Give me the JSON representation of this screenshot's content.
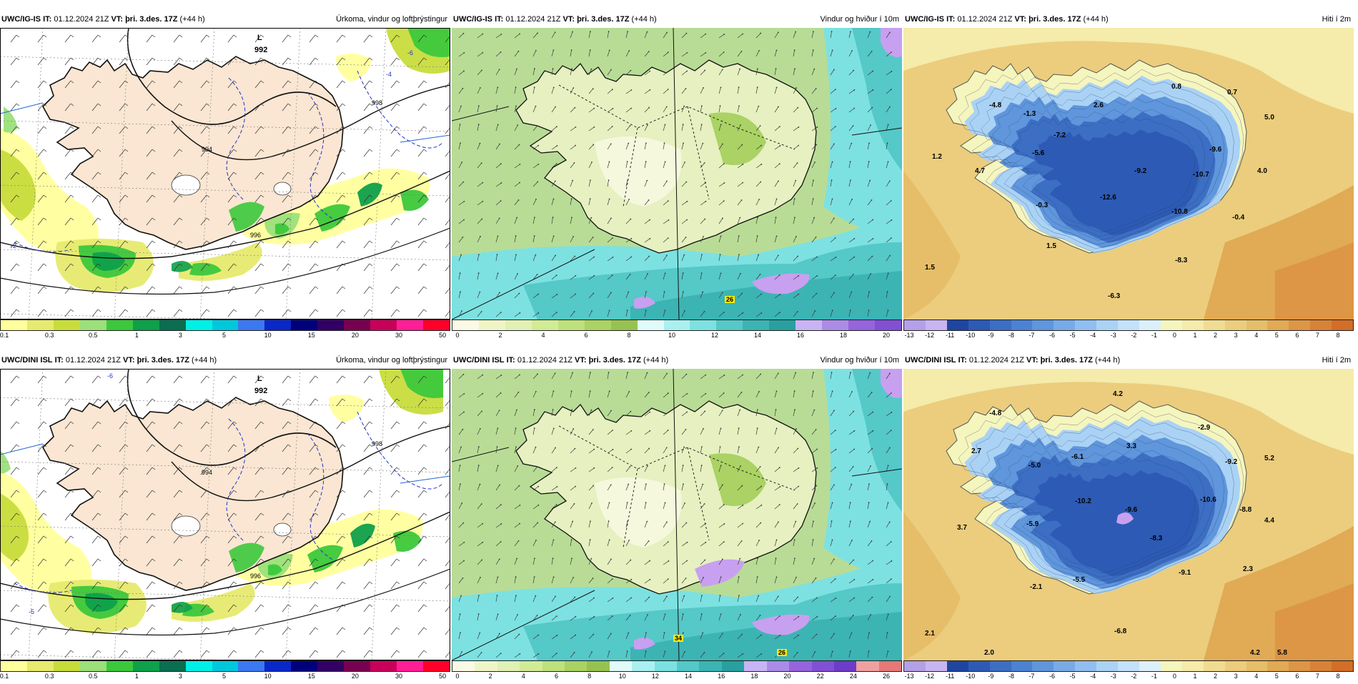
{
  "panels": [
    {
      "id": "p1",
      "header": {
        "model": "UWC/IG-IS",
        "it_label": "IT:",
        "it_value": "01.12.2024 21Z",
        "vt_label": "VT:",
        "vt_value": "þri. 3.des. 17Z",
        "lead": "(+44 h)",
        "title": "Úrkoma, vindur og loftþrýstingur"
      },
      "type": "precip",
      "colorbar": {
        "colors": [
          "#ffff9c",
          "#e6ea6e",
          "#c8dc3c",
          "#9be07a",
          "#3cc83c",
          "#0ea04a",
          "#0a6e50",
          "#00f0e6",
          "#00c8dc",
          "#3c78f0",
          "#0a28c8",
          "#00007a",
          "#320064",
          "#780050",
          "#c8005a",
          "#ff1e96",
          "#ff0028"
        ],
        "ticks": [
          "0.1",
          "0.3",
          "0.5",
          "1",
          "3",
          "5",
          "10",
          "15",
          "20",
          "30",
          "50"
        ]
      },
      "labels": [
        {
          "text": "L",
          "name": "low-pressure-label"
        },
        {
          "text": "992",
          "name": "isobar-value"
        },
        {
          "text": "994",
          "name": "isobar-value"
        },
        {
          "text": "996",
          "name": "isobar-value"
        },
        {
          "text": "998",
          "name": "isobar-value"
        },
        {
          "text": "-2",
          "name": "temp-contour-value"
        },
        {
          "text": "-6",
          "name": "temp-contour-value"
        },
        {
          "text": "-4",
          "name": "temp-contour-value"
        }
      ]
    },
    {
      "id": "p2",
      "header": {
        "model": "UWC/IG-IS",
        "it_label": "IT:",
        "it_value": "01.12.2024 21Z",
        "vt_label": "VT:",
        "vt_value": "þri. 3.des. 17Z",
        "lead": "(+44 h)",
        "title": "Vindur og hviður í 10m"
      },
      "type": "wind",
      "colorbar": {
        "colors": [
          "#fafae6",
          "#f0f5c8",
          "#e1f0b4",
          "#d2eb96",
          "#bee17d",
          "#aad264",
          "#96c350",
          "#e1fafa",
          "#aaf0f0",
          "#7de1e1",
          "#55c8c8",
          "#3cb4b4",
          "#28a0a0",
          "#c8b4f5",
          "#aa8ce6",
          "#9664dc",
          "#8250d2"
        ],
        "ticks": [
          "0",
          "2",
          "4",
          "6",
          "8",
          "10",
          "12",
          "14",
          "16",
          "18",
          "20"
        ]
      },
      "labels": [
        {
          "text": "26",
          "name": "gust-max-badge"
        }
      ]
    },
    {
      "id": "p3",
      "header": {
        "model": "UWC/IG-IS",
        "it_label": "IT:",
        "it_value": "01.12.2024 21Z",
        "vt_label": "VT:",
        "vt_value": "þri. 3.des. 17Z",
        "lead": "(+44 h)",
        "title": "Hiti í 2m"
      },
      "type": "temp",
      "colorbar": {
        "colors": [
          "#b4a0e6",
          "#c8b4f0",
          "#1e46a0",
          "#2d5ab4",
          "#3c6ec3",
          "#4b82d2",
          "#5f96dc",
          "#78aae6",
          "#91bef0",
          "#aad2f5",
          "#c3e1fa",
          "#dcf0fa",
          "#f5f5be",
          "#f5ebaa",
          "#f0dc91",
          "#ebcd7d",
          "#e6be69",
          "#e1aa55",
          "#dc9646",
          "#d78237",
          "#d26e28"
        ],
        "ticks": [
          "-13",
          "-12",
          "-11",
          "-10",
          "-9",
          "-8",
          "-7",
          "-6",
          "-5",
          "-4",
          "-3",
          "-2",
          "-1",
          "0",
          "1",
          "2",
          "3",
          "4",
          "5",
          "6",
          "7",
          "8"
        ]
      },
      "values": [
        "-4.8",
        "-1.3",
        "2.6",
        "0.8",
        "0.7",
        "-7.2",
        "5.0",
        "1.2",
        "-5.6",
        "-9.6",
        "4.7",
        "-9.2",
        "-10.7",
        "4.0",
        "-0.3",
        "-12.6",
        "-10.8",
        "-0.4",
        "1.5",
        "-8.3",
        "1.5",
        "-6.3"
      ]
    },
    {
      "id": "p4",
      "header": {
        "model": "UWC/DINI ISL",
        "it_label": "IT:",
        "it_value": "01.12.2024 21Z",
        "vt_label": "VT:",
        "vt_value": "þri. 3.des. 17Z",
        "lead": "(+44 h)",
        "title": "Úrkoma, vindur og loftþrýstingur"
      },
      "type": "precip",
      "colorbar": {
        "colors": [
          "#ffff9c",
          "#e6ea6e",
          "#c8dc3c",
          "#9be07a",
          "#3cc83c",
          "#0ea04a",
          "#0a6e50",
          "#00f0e6",
          "#00c8dc",
          "#3c78f0",
          "#0a28c8",
          "#00007a",
          "#320064",
          "#780050",
          "#c8005a",
          "#ff1e96",
          "#ff0028"
        ],
        "ticks": [
          "0.1",
          "0.3",
          "0.5",
          "1",
          "3",
          "5",
          "10",
          "15",
          "20",
          "30",
          "50"
        ]
      },
      "labels": [
        {
          "text": "L",
          "name": "low-pressure-label"
        },
        {
          "text": "992",
          "name": "isobar-value"
        },
        {
          "text": "994",
          "name": "isobar-value"
        },
        {
          "text": "996",
          "name": "isobar-value"
        },
        {
          "text": "998",
          "name": "isobar-value"
        },
        {
          "text": "-5",
          "name": "temp-contour-value"
        },
        {
          "text": "-6",
          "name": "temp-contour-value"
        }
      ]
    },
    {
      "id": "p5",
      "header": {
        "model": "UWC/DINI ISL",
        "it_label": "IT:",
        "it_value": "01.12.2024 21Z",
        "vt_label": "VT:",
        "vt_value": "þri. 3.des. 17Z",
        "lead": "(+44 h)",
        "title": "Vindur og hviður í 10m"
      },
      "type": "wind",
      "colorbar": {
        "colors": [
          "#fafae6",
          "#f0f5c8",
          "#e1f0b4",
          "#d2eb96",
          "#bee17d",
          "#aad264",
          "#96c350",
          "#e1fafa",
          "#aaf0f0",
          "#7de1e1",
          "#55c8c8",
          "#3cb4b4",
          "#28a0a0",
          "#c8b4f5",
          "#aa8ce6",
          "#9664dc",
          "#8250d2",
          "#6e3cc8",
          "#f0a0a0",
          "#e67878"
        ],
        "ticks": [
          "0",
          "2",
          "4",
          "6",
          "8",
          "10",
          "12",
          "14",
          "16",
          "18",
          "20",
          "22",
          "24",
          "26"
        ]
      },
      "labels": [
        {
          "text": "34",
          "name": "gust-max-badge"
        },
        {
          "text": "26",
          "name": "gust-max-badge"
        }
      ]
    },
    {
      "id": "p6",
      "header": {
        "model": "UWC/DINI ISL",
        "it_label": "IT:",
        "it_value": "01.12.2024 21Z",
        "vt_label": "VT:",
        "vt_value": "þri. 3.des. 17Z",
        "lead": "(+44 h)",
        "title": "Hiti í 2m"
      },
      "type": "temp",
      "colorbar": {
        "colors": [
          "#b4a0e6",
          "#c8b4f0",
          "#1e46a0",
          "#2d5ab4",
          "#3c6ec3",
          "#4b82d2",
          "#5f96dc",
          "#78aae6",
          "#91bef0",
          "#aad2f5",
          "#c3e1fa",
          "#dcf0fa",
          "#f5f5be",
          "#f5ebaa",
          "#f0dc91",
          "#ebcd7d",
          "#e6be69",
          "#e1aa55",
          "#dc9646",
          "#d78237",
          "#d26e28"
        ],
        "ticks": [
          "-13",
          "-12",
          "-11",
          "-10",
          "-9",
          "-8",
          "-7",
          "-6",
          "-5",
          "-4",
          "-3",
          "-2",
          "-1",
          "0",
          "1",
          "2",
          "3",
          "4",
          "5",
          "6",
          "7",
          "8"
        ]
      },
      "values": [
        "4.2",
        "-4.8",
        "-2.9",
        "2.7",
        "3.3",
        "-5.0",
        "-6.1",
        "-9.2",
        "5.2",
        "-10.2",
        "-9.6",
        "-10.6",
        "-8.8",
        "4.4",
        "3.7",
        "-5.9",
        "-8.3",
        "2.3",
        "-9.1",
        "-2.1",
        "-5.5",
        "2.1",
        "-6.8",
        "2.0",
        "4.2",
        "5.8"
      ]
    }
  ]
}
